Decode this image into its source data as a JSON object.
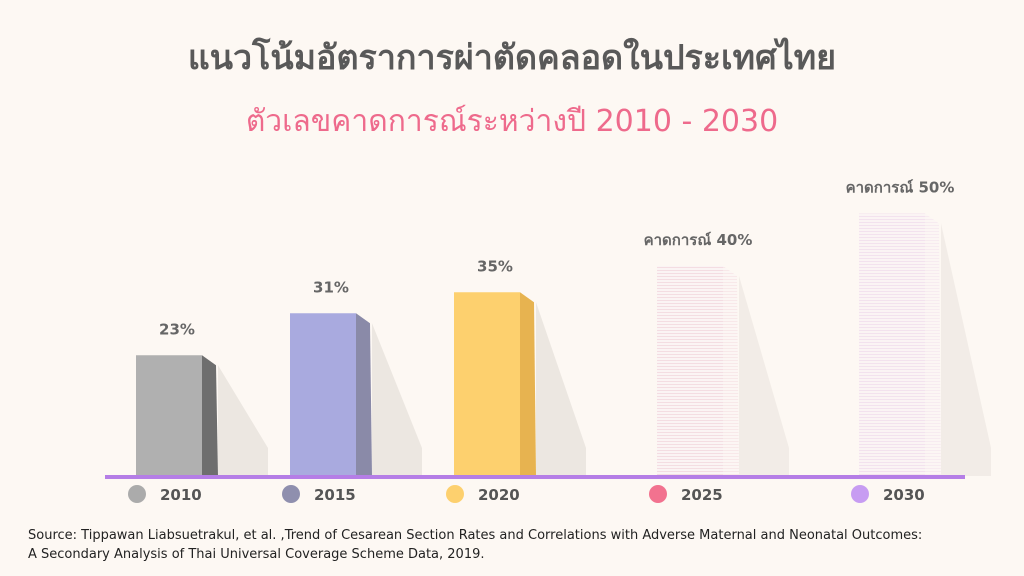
{
  "title": "แนวโน้มอัตราการผ่าตัดคลอดในประเทศไทย",
  "subtitle": "ตัวเลขคาดการณ์ระหว่างปี 2010 - 2030",
  "source": {
    "line1": "Source: Tippawan Liabsuetrakul, et al. ,Trend of Cesarean Section Rates and Correlations with Adverse Maternal and Neonatal Outcomes:",
    "line2": "A Secondary Analysis of Thai Universal Coverage Scheme Data, 2019."
  },
  "colors": {
    "axis": "#b57ee6",
    "shadow": "#ece7e1"
  },
  "chart_data": {
    "type": "bar",
    "unit": "%",
    "categories": [
      "2010",
      "2015",
      "2020",
      "2025",
      "2030"
    ],
    "values": [
      23,
      31,
      35,
      40,
      50
    ],
    "data_labels": [
      "23%",
      "31%",
      "35%",
      "คาดการณ์ 40%",
      "คาดการณ์ 50%"
    ],
    "projected": [
      false,
      false,
      false,
      true,
      true
    ],
    "bar_colors": [
      "#b0b0b0",
      "#a9aadf",
      "#fdd06e",
      "#f4dde2",
      "#f3e2ee"
    ],
    "side_colors": [
      "#6e6e6e",
      "#8a8aa8",
      "#e7b350",
      "#f4dde2",
      "#f3e2ee"
    ],
    "legend_dot_colors": [
      "#ababab",
      "#8f8fae",
      "#fdd06e",
      "#f2728f",
      "#c79cf2"
    ],
    "ylim": [
      0,
      50
    ],
    "grid": false,
    "legend": "bottom"
  }
}
